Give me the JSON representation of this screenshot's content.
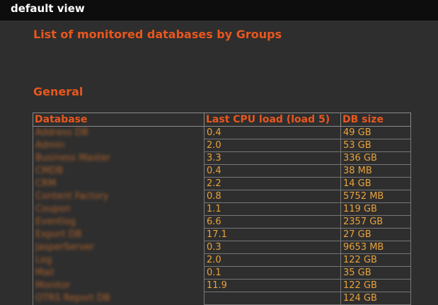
{
  "window": {
    "title": "default view"
  },
  "page": {
    "heading": "List of monitored databases by Groups"
  },
  "group": {
    "name": "General"
  },
  "table": {
    "headers": [
      "Database",
      "Last CPU load (load 5)",
      "DB size"
    ],
    "rows": [
      {
        "database": "Address DB",
        "cpu": "0.4",
        "size": "49 GB"
      },
      {
        "database": "Admin",
        "cpu": "2.0",
        "size": "53 GB"
      },
      {
        "database": "Business Master",
        "cpu": "3.3",
        "size": "336 GB"
      },
      {
        "database": "CMDB",
        "cpu": "0.4",
        "size": "38 MB"
      },
      {
        "database": "CRM",
        "cpu": "2.2",
        "size": "14 GB"
      },
      {
        "database": "Content Factory",
        "cpu": "0.8",
        "size": "5752 MB"
      },
      {
        "database": "Coupon",
        "cpu": "1.1",
        "size": "119 GB"
      },
      {
        "database": "Eventlog",
        "cpu": "6.6",
        "size": "2357 GB"
      },
      {
        "database": "Export DB",
        "cpu": "17.1",
        "size": "27 GB"
      },
      {
        "database": "JasperServer",
        "cpu": "0.3",
        "size": "9653 MB"
      },
      {
        "database": "Log",
        "cpu": "2.0",
        "size": "122 GB"
      },
      {
        "database": "Mail",
        "cpu": "0.1",
        "size": "35 GB"
      },
      {
        "database": "Monitor",
        "cpu": "11.9",
        "size": "122 GB"
      },
      {
        "database": "OTRS Report DB",
        "cpu": "",
        "size": "124 GB"
      }
    ]
  }
}
